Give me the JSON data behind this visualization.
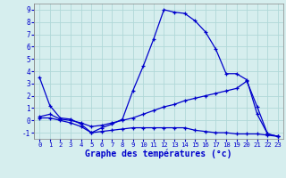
{
  "xlabel": "Graphe des températures (°c)",
  "bg_color": "#d6eeee",
  "grid_color": "#b0d8d8",
  "line_color": "#0000cc",
  "xlim": [
    -0.5,
    23.5
  ],
  "ylim": [
    -1.5,
    9.5
  ],
  "xticks": [
    0,
    1,
    2,
    3,
    4,
    5,
    6,
    7,
    8,
    9,
    10,
    11,
    12,
    13,
    14,
    15,
    16,
    17,
    18,
    19,
    20,
    21,
    22,
    23
  ],
  "yticks": [
    -1,
    0,
    1,
    2,
    3,
    4,
    5,
    6,
    7,
    8,
    9
  ],
  "curve1_x": [
    0,
    1,
    2,
    3,
    4,
    5,
    6,
    7,
    8,
    9,
    10,
    11,
    12,
    13,
    14,
    15,
    16,
    17,
    18,
    19,
    20,
    21,
    22,
    23
  ],
  "curve1_y": [
    3.5,
    1.2,
    0.2,
    0.1,
    -0.3,
    -1.0,
    -0.6,
    -0.3,
    0.1,
    2.4,
    4.4,
    6.6,
    9.0,
    8.8,
    8.7,
    8.1,
    7.2,
    5.8,
    3.8,
    3.8,
    3.3,
    0.5,
    -1.1,
    -1.3
  ],
  "curve2_x": [
    0,
    1,
    2,
    3,
    4,
    5,
    6,
    7,
    8,
    9,
    10,
    11,
    12,
    13,
    14,
    15,
    16,
    17,
    18,
    19,
    20,
    21,
    22,
    23
  ],
  "curve2_y": [
    0.3,
    0.5,
    0.1,
    0.0,
    -0.2,
    -0.5,
    -0.4,
    -0.2,
    0.0,
    0.2,
    0.5,
    0.8,
    1.1,
    1.3,
    1.6,
    1.8,
    2.0,
    2.2,
    2.4,
    2.6,
    3.2,
    1.1,
    -1.1,
    -1.3
  ],
  "curve3_x": [
    0,
    1,
    2,
    3,
    4,
    5,
    6,
    7,
    8,
    9,
    10,
    11,
    12,
    13,
    14,
    15,
    16,
    17,
    18,
    19,
    20,
    21,
    22,
    23
  ],
  "curve3_y": [
    0.2,
    0.2,
    0.0,
    -0.2,
    -0.5,
    -1.0,
    -0.9,
    -0.8,
    -0.7,
    -0.6,
    -0.6,
    -0.6,
    -0.6,
    -0.6,
    -0.6,
    -0.8,
    -0.9,
    -1.0,
    -1.0,
    -1.1,
    -1.1,
    -1.1,
    -1.2,
    -1.3
  ]
}
